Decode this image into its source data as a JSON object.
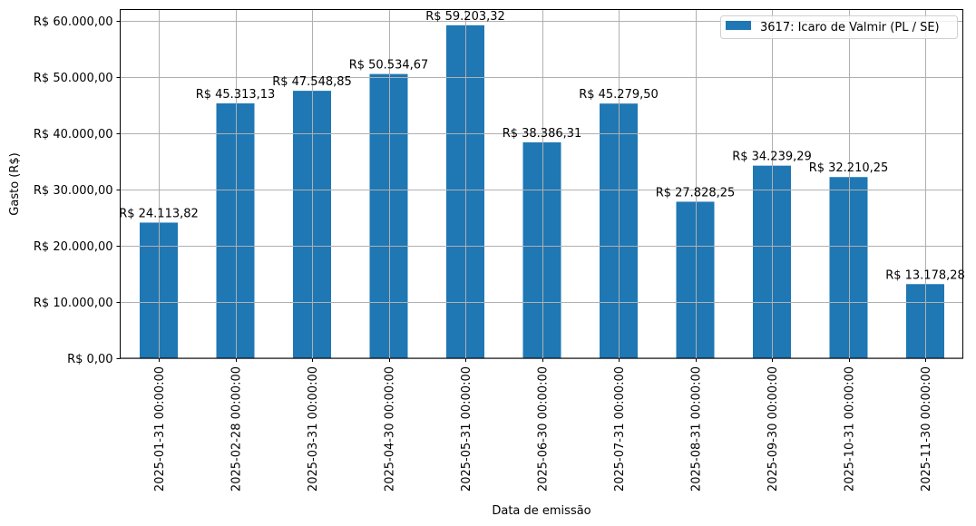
{
  "chart_data": {
    "type": "bar",
    "title": "",
    "xlabel": "Data de emissão",
    "ylabel": "Gasto (R$)",
    "ylim": [
      0,
      62000
    ],
    "grid": true,
    "legend_position": "upper right",
    "bar_color": "#1f77b4",
    "categories": [
      "2025-01-31 00:00:00",
      "2025-02-28 00:00:00",
      "2025-03-31 00:00:00",
      "2025-04-30 00:00:00",
      "2025-05-31 00:00:00",
      "2025-06-30 00:00:00",
      "2025-07-31 00:00:00",
      "2025-08-31 00:00:00",
      "2025-09-30 00:00:00",
      "2025-10-31 00:00:00",
      "2025-11-30 00:00:00"
    ],
    "series": [
      {
        "name": "3617: Icaro de Valmir (PL / SE)",
        "values": [
          24113.82,
          45313.13,
          47548.85,
          50534.67,
          59203.32,
          38386.31,
          45279.5,
          27828.25,
          34239.29,
          32210.25,
          13178.28
        ],
        "labels": [
          "R$ 24.113,82",
          "R$ 45.313,13",
          "R$ 47.548,85",
          "R$ 50.534,67",
          "R$ 59.203,32",
          "R$ 38.386,31",
          "R$ 45.279,50",
          "R$ 27.828,25",
          "R$ 34.239,29",
          "R$ 32.210,25",
          "R$ 13.178,28"
        ]
      }
    ],
    "yticks": [
      0,
      10000,
      20000,
      30000,
      40000,
      50000,
      60000
    ],
    "ytick_labels": [
      "R$ 0,00",
      "R$ 10.000,00",
      "R$ 20.000,00",
      "R$ 30.000,00",
      "R$ 40.000,00",
      "R$ 50.000,00",
      "R$ 60.000,00"
    ]
  }
}
